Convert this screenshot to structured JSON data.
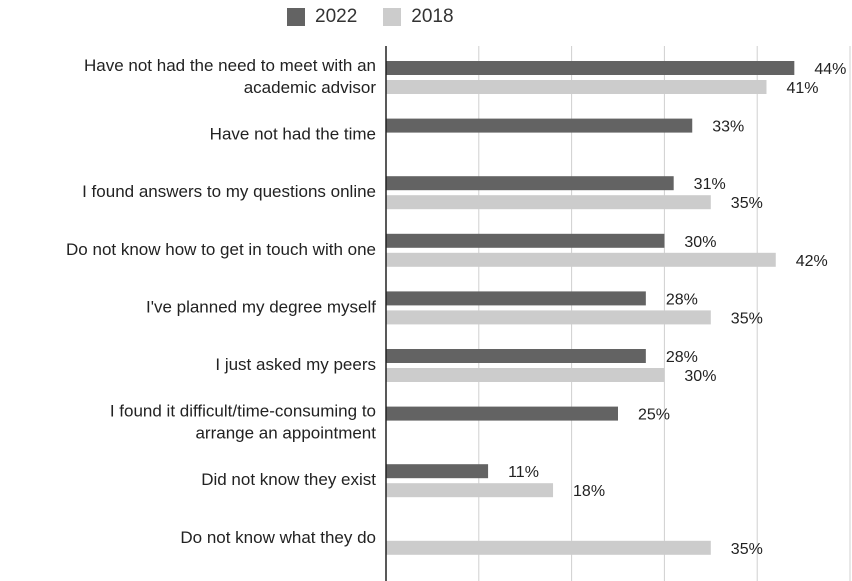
{
  "chart_data": {
    "type": "bar",
    "orientation": "horizontal",
    "categories": [
      [
        "Have not had the need to meet with an",
        "academic advisor"
      ],
      [
        "Have not had the time"
      ],
      [
        "I found answers to my questions online"
      ],
      [
        "Do not know how to get in touch with one"
      ],
      [
        "I've planned my degree myself"
      ],
      [
        "I just asked my peers"
      ],
      [
        "I found it difficult/time-consuming to",
        "arrange an appointment"
      ],
      [
        "Did not know they exist"
      ],
      [
        "Do not know what they do"
      ]
    ],
    "series": [
      {
        "name": "2022",
        "color": "#636363",
        "values": [
          44,
          33,
          31,
          30,
          28,
          28,
          25,
          11,
          null
        ],
        "labels": [
          "44%",
          "33%",
          "31%",
          "30%",
          "28%",
          "28%",
          "25%",
          "11%",
          null
        ]
      },
      {
        "name": "2018",
        "color": "#cccccc",
        "values": [
          41,
          null,
          35,
          42,
          35,
          30,
          null,
          18,
          35
        ],
        "labels": [
          "41%",
          null,
          "35%",
          "42%",
          "35%",
          "30%",
          null,
          "18%",
          "35%"
        ]
      }
    ],
    "xlim": [
      0,
      50
    ],
    "grid": true,
    "legend_position": "top"
  }
}
